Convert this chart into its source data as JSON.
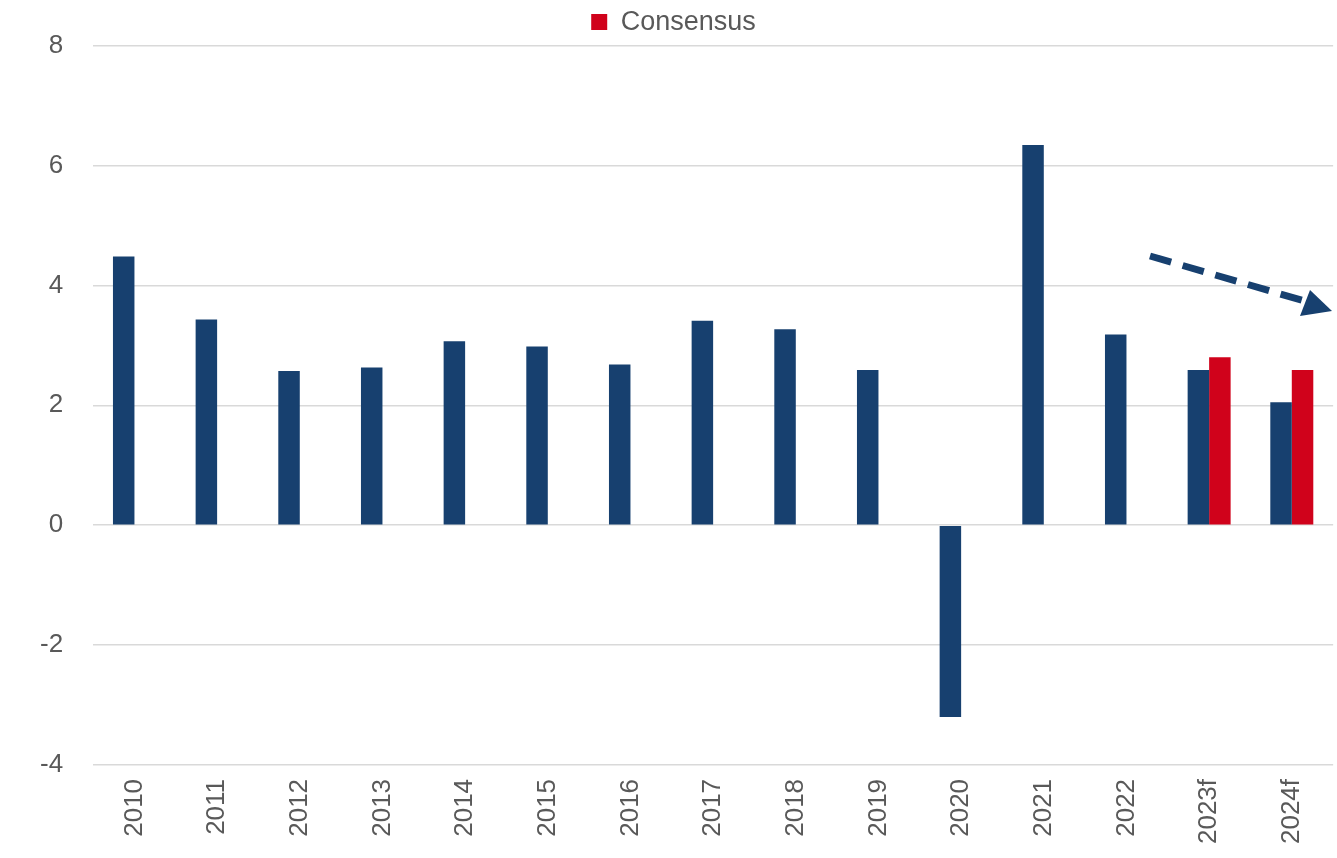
{
  "chart_data": {
    "type": "bar",
    "categories": [
      "2010",
      "2011",
      "2012",
      "2013",
      "2014",
      "2015",
      "2016",
      "2017",
      "2018",
      "2019",
      "2020",
      "2021",
      "2022",
      "2023f",
      "2024f"
    ],
    "series": [
      {
        "color": "#17406f",
        "values": [
          4.48,
          3.43,
          2.57,
          2.63,
          3.07,
          2.98,
          2.68,
          3.41,
          3.27,
          2.59,
          -3.2,
          6.34,
          3.18,
          2.59,
          2.05
        ]
      },
      {
        "name": "Consensus",
        "color": "#d0021b",
        "values": [
          null,
          null,
          null,
          null,
          null,
          null,
          null,
          null,
          null,
          null,
          null,
          null,
          null,
          2.8,
          2.59
        ]
      }
    ],
    "ylim": [
      -4,
      8
    ],
    "yticks": [
      -4,
      -2,
      0,
      2,
      4,
      6,
      8
    ],
    "grid": "y",
    "legend": "top"
  }
}
